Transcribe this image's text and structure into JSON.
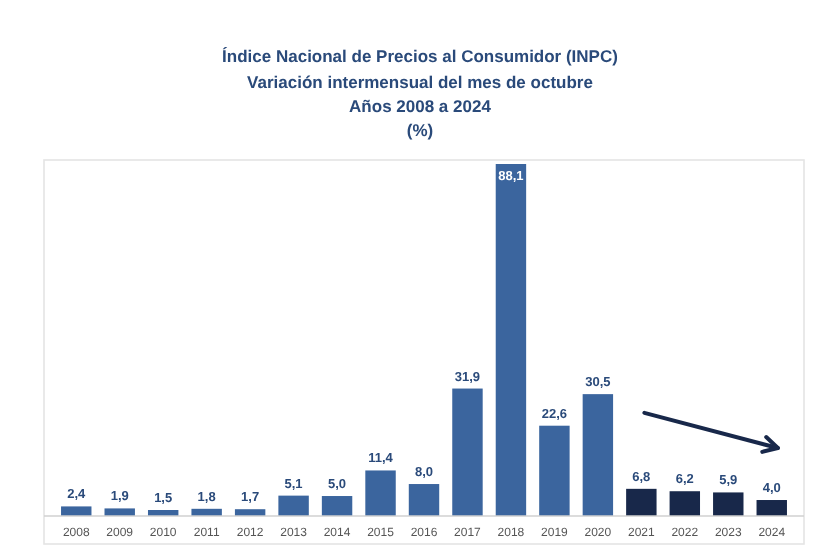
{
  "chart_data": {
    "type": "bar",
    "title": "Índice Nacional de Precios al Consumidor (INPC)",
    "subtitle": "Variación intermensual del mes de octubre\nAños 2008 a 2024\n(%)",
    "categories": [
      "2008",
      "2009",
      "2010",
      "2011",
      "2012",
      "2013",
      "2014",
      "2015",
      "2016",
      "2017",
      "2018",
      "2019",
      "2020",
      "2021",
      "2022",
      "2023",
      "2024"
    ],
    "values": [
      2.4,
      1.9,
      1.5,
      1.8,
      1.7,
      5.1,
      5.0,
      11.4,
      8.0,
      31.9,
      88.1,
      22.6,
      30.5,
      6.8,
      6.2,
      5.9,
      4.0
    ],
    "colors": [
      "#3b659e",
      "#3b659e",
      "#3b659e",
      "#3b659e",
      "#3b659e",
      "#3b659e",
      "#3b659e",
      "#3b659e",
      "#3b659e",
      "#3b659e",
      "#3b659e",
      "#3b659e",
      "#3b659e",
      "#18284a",
      "#18284a",
      "#18284a",
      "#18284a"
    ],
    "value_labels": [
      "2,4",
      "1,9",
      "1,5",
      "1,8",
      "1,7",
      "5,1",
      "5,0",
      "11,4",
      "8,0",
      "31,9",
      "88,1",
      "22,6",
      "30,5",
      "6,8",
      "6,2",
      "5,9",
      "4,0"
    ],
    "data_labels": false
  }
}
